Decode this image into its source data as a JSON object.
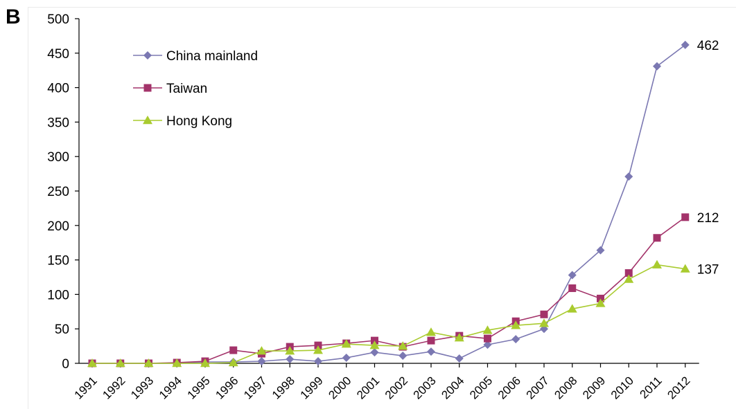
{
  "panel_label": "B",
  "chart_data": {
    "type": "line",
    "title": "",
    "xlabel": "",
    "ylabel": "",
    "ylim": [
      0,
      500
    ],
    "yticks": [
      0,
      50,
      100,
      150,
      200,
      250,
      300,
      350,
      400,
      450,
      500
    ],
    "grid": false,
    "legend_position": "top-left",
    "categories": [
      "1991",
      "1992",
      "1993",
      "1994",
      "1995",
      "1996",
      "1997",
      "1998",
      "1999",
      "2000",
      "2001",
      "2002",
      "2003",
      "2004",
      "2005",
      "2006",
      "2007",
      "2008",
      "2009",
      "2010",
      "2011",
      "2012"
    ],
    "series": [
      {
        "name": "China mainland",
        "marker": "diamond",
        "color": "#7B78B2",
        "values": [
          0,
          0,
          0,
          0,
          2,
          2,
          3,
          6,
          3,
          8,
          16,
          11,
          17,
          7,
          27,
          35,
          50,
          128,
          164,
          271,
          431,
          462
        ],
        "end_label": "462"
      },
      {
        "name": "Taiwan",
        "marker": "square",
        "color": "#A3336A",
        "values": [
          0,
          0,
          0,
          1,
          3,
          19,
          14,
          24,
          26,
          29,
          33,
          24,
          33,
          40,
          36,
          61,
          71,
          109,
          94,
          131,
          182,
          212
        ],
        "end_label": "212"
      },
      {
        "name": "Hong Kong",
        "marker": "triangle",
        "color": "#A9CB2F",
        "values": [
          0,
          0,
          0,
          0,
          0,
          1,
          18,
          18,
          19,
          28,
          26,
          25,
          45,
          37,
          48,
          55,
          58,
          79,
          87,
          122,
          143,
          137
        ],
        "end_label": "137"
      }
    ]
  }
}
